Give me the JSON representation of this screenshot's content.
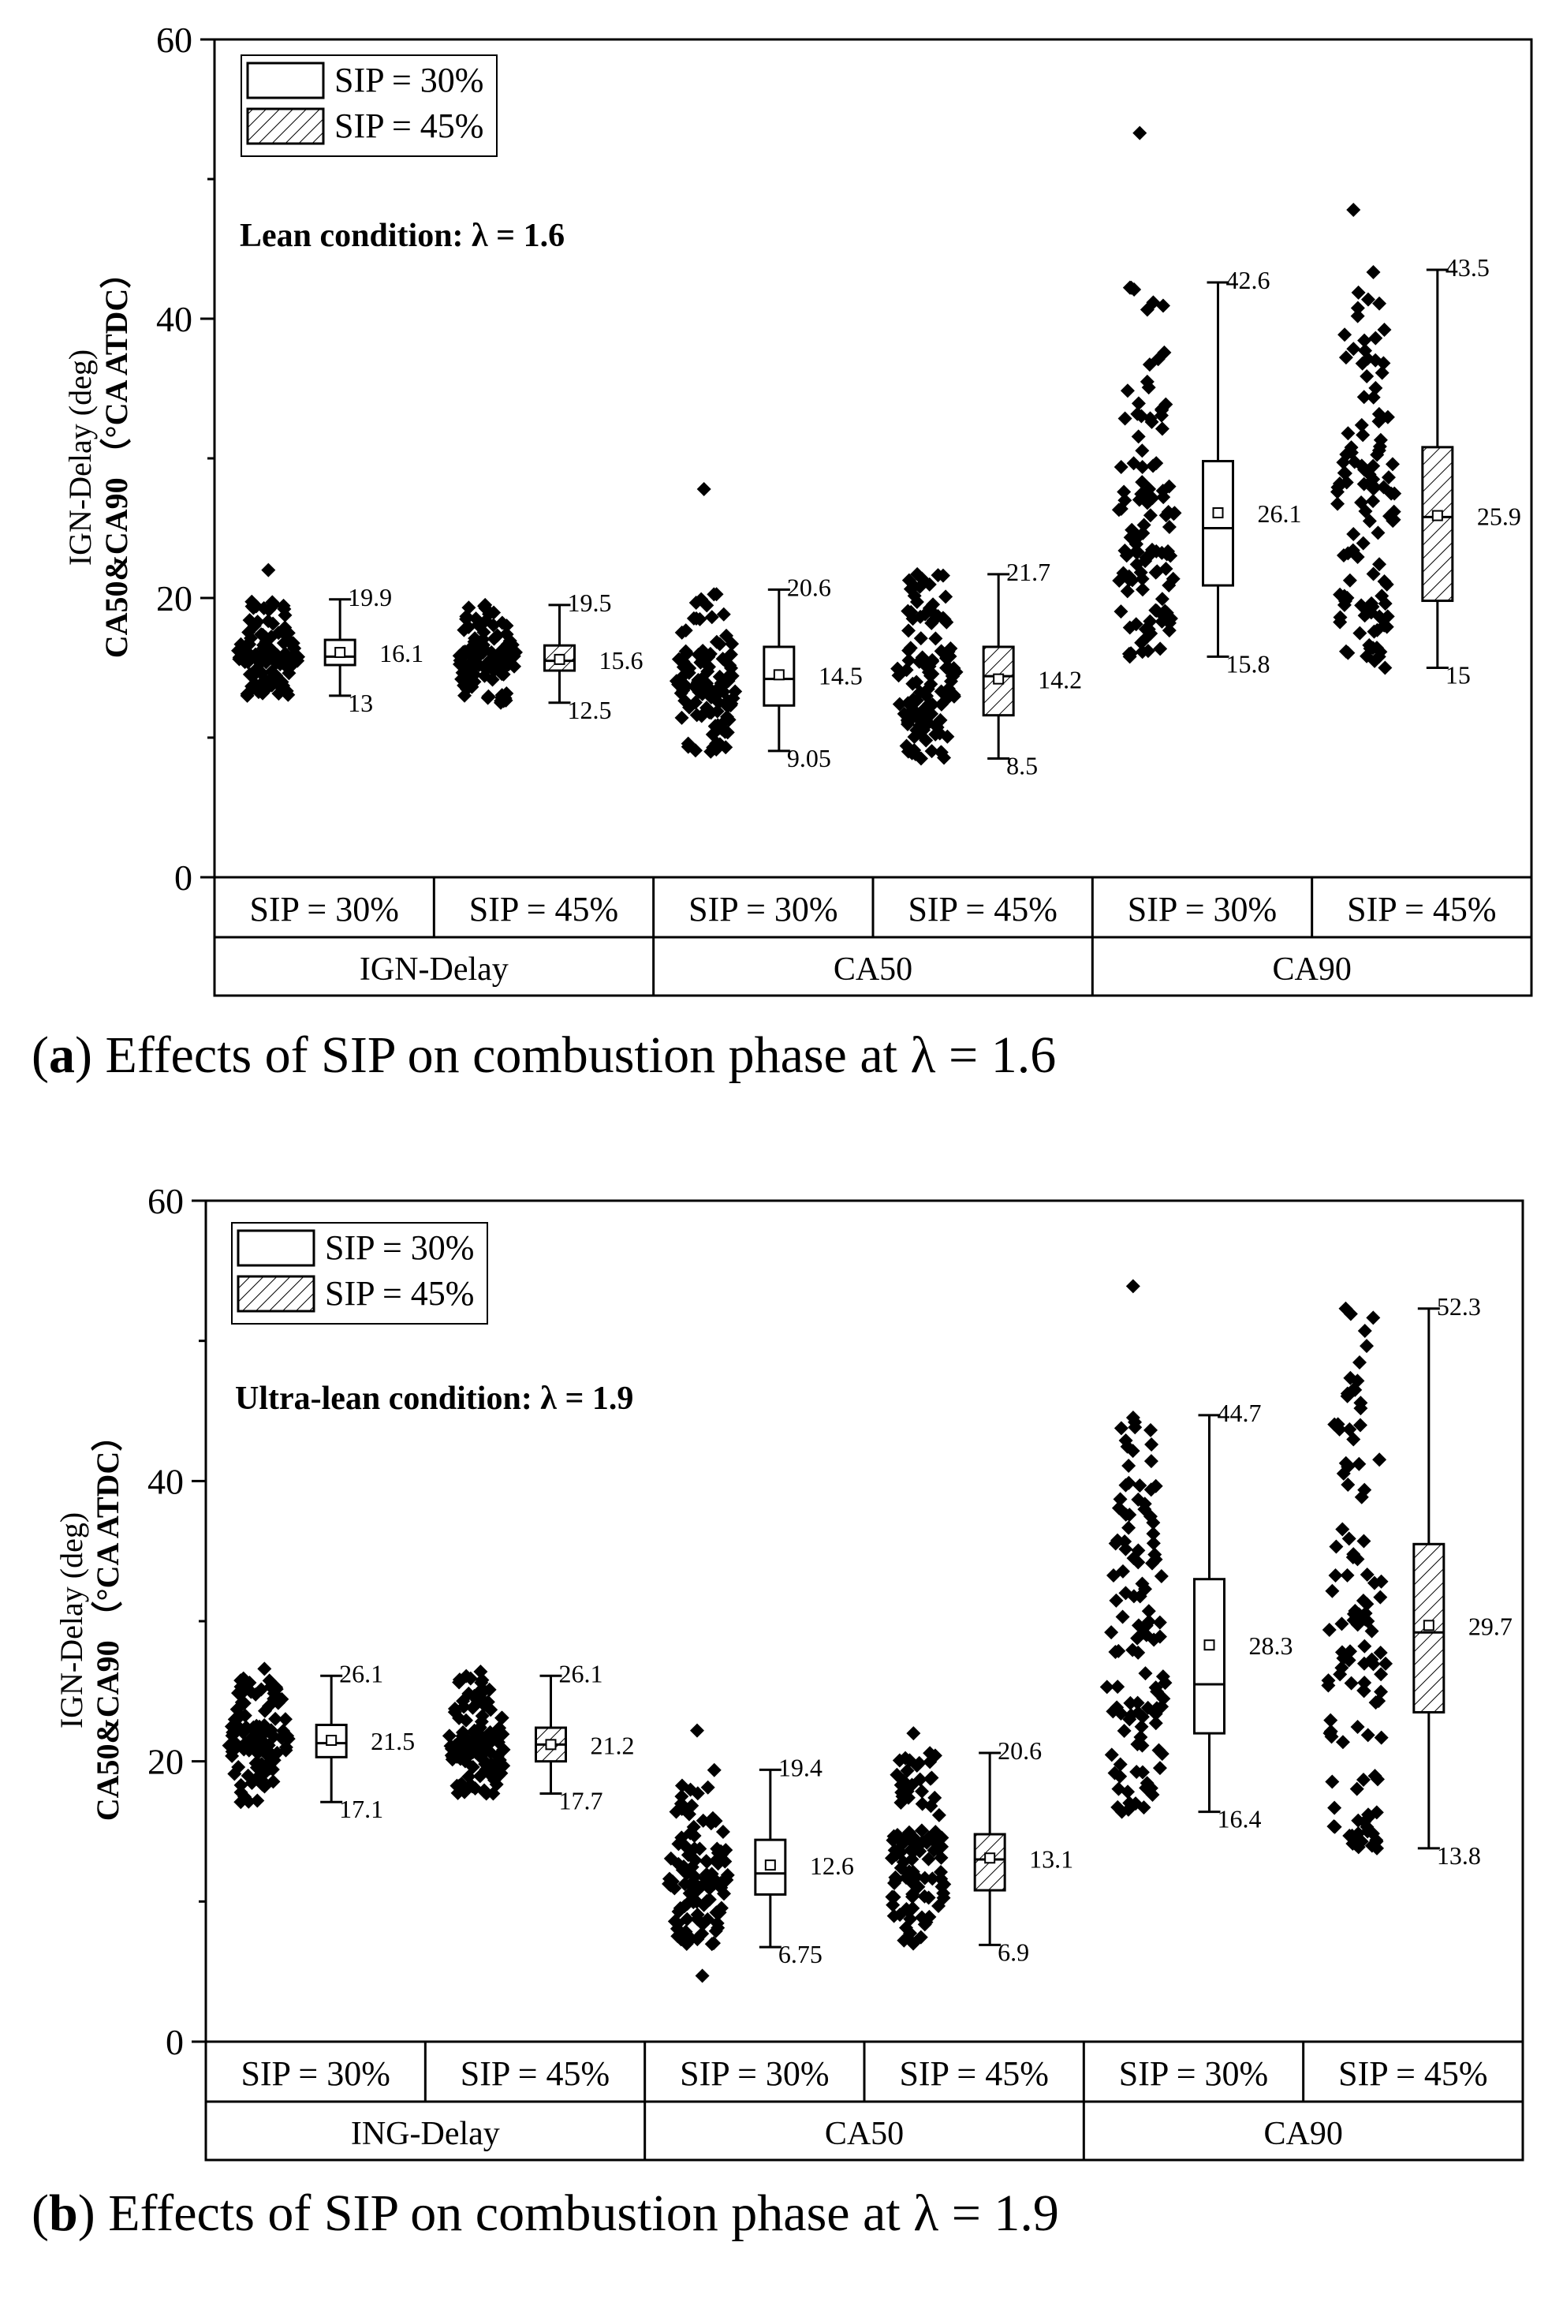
{
  "figure": {
    "panels": [
      {
        "caption": {
          "letter": "a",
          "text": "Effects of SIP on combustion phase at λ = 1.6"
        }
      },
      {
        "caption": {
          "letter": "b",
          "text": "Effects of SIP on combustion phase at λ = 1.9"
        }
      }
    ]
  },
  "colors": {
    "marker": "#000000",
    "box_outline": "#000000",
    "background": "#ffffff"
  },
  "chart_data": [
    {
      "type": "box",
      "panel": "a",
      "annotation": "Lean condition: λ = 1.6",
      "ylabel_top": "IGN-Delay (deg)",
      "ylabel_bottom": "CA50&CA90 （°CA ATDC）",
      "ylim": [
        0,
        60
      ],
      "yticks": [
        0,
        20,
        40,
        60
      ],
      "legend": {
        "position": "top-left",
        "entries": [
          "SIP = 30%",
          "SIP = 45%"
        ]
      },
      "groups": [
        "IGN-Delay",
        "CA50",
        "CA90"
      ],
      "sub_categories": [
        "SIP = 30%",
        "SIP = 45%",
        "SIP = 30%",
        "SIP = 45%",
        "SIP = 30%",
        "SIP = 45%"
      ],
      "boxes": [
        {
          "group": "IGN-Delay",
          "sip": "SIP = 30%",
          "min": 13,
          "q1": 15.2,
          "median": 15.8,
          "q3": 17.0,
          "max": 19.9,
          "mean": 16.1,
          "labels": [
            "19.9",
            "16.1",
            "13"
          ],
          "scatter_min": 13.0,
          "scatter_max": 22.0
        },
        {
          "group": "IGN-Delay",
          "sip": "SIP = 45%",
          "min": 12.5,
          "q1": 14.8,
          "median": 15.5,
          "q3": 16.6,
          "max": 19.5,
          "mean": 15.6,
          "labels": [
            "19.5",
            "15.6",
            "12.5"
          ],
          "scatter_min": 12.5,
          "scatter_max": 19.5
        },
        {
          "group": "CA50",
          "sip": "SIP = 30%",
          "min": 9.05,
          "q1": 12.3,
          "median": 14.2,
          "q3": 16.5,
          "max": 20.6,
          "mean": 14.5,
          "labels": [
            "20.6",
            "14.5",
            "9.05"
          ],
          "scatter_min": 9.0,
          "scatter_max": 27.8
        },
        {
          "group": "CA50",
          "sip": "SIP = 45%",
          "min": 8.5,
          "q1": 11.6,
          "median": 14.4,
          "q3": 16.5,
          "max": 21.7,
          "mean": 14.2,
          "labels": [
            "21.7",
            "14.2",
            "8.5"
          ],
          "scatter_min": 8.5,
          "scatter_max": 21.7
        },
        {
          "group": "CA90",
          "sip": "SIP = 30%",
          "min": 15.8,
          "q1": 20.9,
          "median": 25.0,
          "q3": 29.8,
          "max": 42.6,
          "mean": 26.1,
          "labels": [
            "42.6",
            "26.1",
            "15.8"
          ],
          "scatter_min": 15.8,
          "scatter_max": 53.3
        },
        {
          "group": "CA90",
          "sip": "SIP = 45%",
          "min": 15,
          "q1": 19.8,
          "median": 25.8,
          "q3": 30.8,
          "max": 43.5,
          "mean": 25.9,
          "labels": [
            "43.5",
            "25.9",
            "15"
          ],
          "scatter_min": 15.0,
          "scatter_max": 47.8
        }
      ]
    },
    {
      "type": "box",
      "panel": "b",
      "annotation": "Ultra-lean condition: λ = 1.9",
      "ylabel_top": "IGN-Delay (deg)",
      "ylabel_bottom": "CA50&CA90 （°CA ATDC）",
      "ylim": [
        0,
        60
      ],
      "yticks": [
        0,
        20,
        40,
        60
      ],
      "legend": {
        "position": "top-left",
        "entries": [
          "SIP = 30%",
          "SIP = 45%"
        ]
      },
      "groups": [
        "ING-Delay",
        "CA50",
        "CA90"
      ],
      "sub_categories": [
        "SIP = 30%",
        "SIP = 45%",
        "SIP = 30%",
        "SIP = 45%",
        "SIP = 30%",
        "SIP = 45%"
      ],
      "boxes": [
        {
          "group": "ING-Delay",
          "sip": "SIP = 30%",
          "min": 17.1,
          "q1": 20.3,
          "median": 21.3,
          "q3": 22.6,
          "max": 26.1,
          "mean": 21.5,
          "labels": [
            "26.1",
            "21.5",
            "17.1"
          ],
          "scatter_min": 17.1,
          "scatter_max": 26.6
        },
        {
          "group": "ING-Delay",
          "sip": "SIP = 45%",
          "min": 17.7,
          "q1": 20.0,
          "median": 21.2,
          "q3": 22.4,
          "max": 26.1,
          "mean": 21.2,
          "labels": [
            "26.1",
            "21.2",
            "17.7"
          ],
          "scatter_min": 17.7,
          "scatter_max": 26.4
        },
        {
          "group": "CA50",
          "sip": "SIP = 30%",
          "min": 6.75,
          "q1": 10.5,
          "median": 12.0,
          "q3": 14.4,
          "max": 19.4,
          "mean": 12.6,
          "labels": [
            "19.4",
            "12.6",
            "6.75"
          ],
          "scatter_min": 4.7,
          "scatter_max": 22.2
        },
        {
          "group": "CA50",
          "sip": "SIP = 45%",
          "min": 6.9,
          "q1": 10.8,
          "median": 13.0,
          "q3": 14.8,
          "max": 20.6,
          "mean": 13.1,
          "labels": [
            "20.6",
            "13.1",
            "6.9"
          ],
          "scatter_min": 7.0,
          "scatter_max": 22.0
        },
        {
          "group": "CA90",
          "sip": "SIP = 30%",
          "min": 16.4,
          "q1": 22.0,
          "median": 25.5,
          "q3": 33.0,
          "max": 44.7,
          "mean": 28.3,
          "labels": [
            "44.7",
            "28.3",
            "16.4"
          ],
          "scatter_min": 16.4,
          "scatter_max": 53.9
        },
        {
          "group": "CA90",
          "sip": "SIP = 45%",
          "min": 13.8,
          "q1": 23.5,
          "median": 29.2,
          "q3": 35.5,
          "max": 52.3,
          "mean": 29.7,
          "labels": [
            "52.3",
            "29.7",
            "13.8"
          ],
          "scatter_min": 13.8,
          "scatter_max": 52.3
        }
      ]
    }
  ]
}
